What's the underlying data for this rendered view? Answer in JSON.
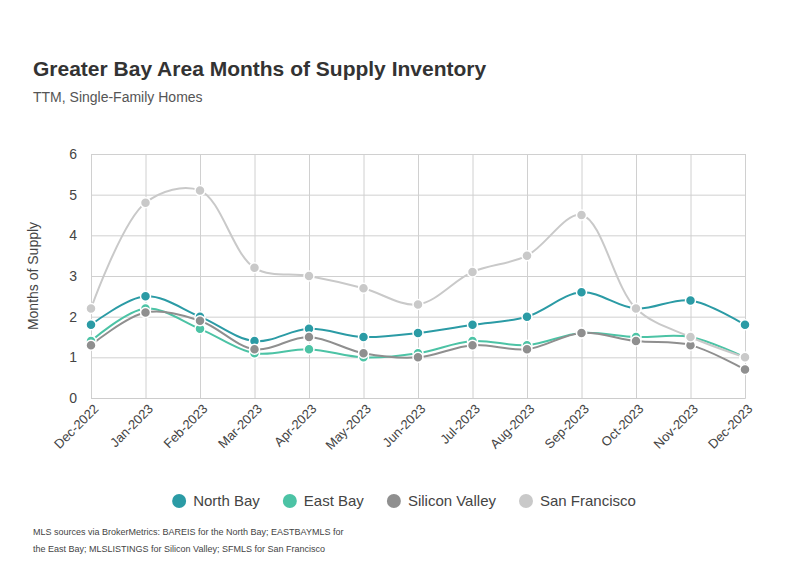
{
  "chart_data": {
    "type": "line",
    "title": "Greater Bay Area Months of Supply Inventory",
    "subtitle": "TTM, Single-Family Homes",
    "y_label": "Months of Supply",
    "source": "MLS sources via BrokerMetrics: BAREIS for the North Bay; EASTBAYMLS for the East Bay; MLSLISTINGS for Silicon Valley; SFMLS for San Francisco",
    "categories": [
      "Dec-2022",
      "Jan-2023",
      "Feb-2023",
      "Mar-2023",
      "Apr-2023",
      "May-2023",
      "Jun-2023",
      "Jul-2023",
      "Aug-2023",
      "Sep-2023",
      "Oct-2023",
      "Nov-2023",
      "Dec-2023"
    ],
    "series": [
      {
        "name": "North Bay",
        "color": "#2b9ba5",
        "values": [
          1.8,
          2.5,
          2.0,
          1.4,
          1.7,
          1.5,
          1.6,
          1.8,
          2.0,
          2.6,
          2.2,
          2.4,
          1.8
        ]
      },
      {
        "name": "East Bay",
        "color": "#4cc3a5",
        "values": [
          1.4,
          2.2,
          1.7,
          1.1,
          1.2,
          1.0,
          1.1,
          1.4,
          1.3,
          1.6,
          1.5,
          1.5,
          1.0
        ]
      },
      {
        "name": "Silicon Valley",
        "color": "#8f8f8f",
        "values": [
          1.3,
          2.1,
          1.9,
          1.2,
          1.5,
          1.1,
          1.0,
          1.3,
          1.2,
          1.6,
          1.4,
          1.3,
          0.7
        ]
      },
      {
        "name": "San Francisco",
        "color": "#c9c9c9",
        "values": [
          2.2,
          4.8,
          5.1,
          3.2,
          3.0,
          2.7,
          2.3,
          3.1,
          3.5,
          4.5,
          2.2,
          1.5,
          1.0
        ]
      }
    ],
    "ylim": [
      0,
      6
    ],
    "yticks": [
      0,
      1,
      2,
      3,
      4,
      5,
      6
    ],
    "grid": true,
    "legend": "bottom",
    "marker": "circle",
    "line_style": "smooth"
  }
}
